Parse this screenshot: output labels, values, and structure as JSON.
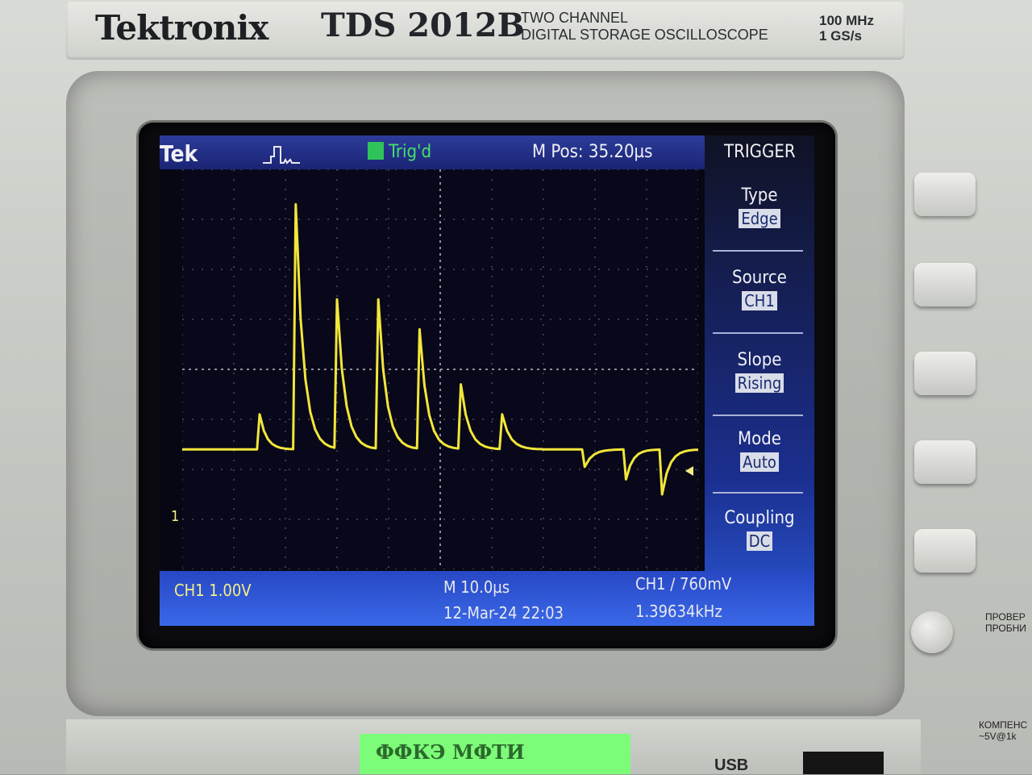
{
  "instrument": {
    "brand": "Tektronix",
    "model": "TDS 2012B",
    "description_line1": "TWO  CHANNEL",
    "description_line2": "DIGITAL STORAGE OSCILLOSCOPE",
    "bandwidth": "100 MHz",
    "sample_rate": "1 GS/s"
  },
  "screen": {
    "logo": "Tek",
    "trigger_status": "Trig'd",
    "horizontal_position": "M Pos: 35.20µs",
    "ch1_marker": "1",
    "ch1_scale": "CH1  1.00V",
    "timebase": "M 10.0µs",
    "datetime": "12-Mar-24 22:03",
    "trigger_level": "CH1 ∕ 760mV",
    "frequency": "1.39634kHz"
  },
  "trigger_menu": {
    "title": "TRIGGER",
    "items": [
      {
        "label": "Type",
        "value": "Edge"
      },
      {
        "label": "Source",
        "value": "CH1"
      },
      {
        "label": "Slope",
        "value": "Rising"
      },
      {
        "label": "Mode",
        "value": "Auto"
      },
      {
        "label": "Coupling",
        "value": "DC"
      }
    ]
  },
  "side_labels": {
    "probe_check": "ПРОВЕР",
    "probe_check2": "ПРОБНИ",
    "compensation": "КОМПЕНС",
    "compensation2": "~5V@1k"
  },
  "front_panel": {
    "sticker": "ФФКЭ МФТИ",
    "usb": "USB"
  },
  "colors": {
    "trace": "#f2e63a",
    "screen_bg": "#060713",
    "bar_blue": "#2748c4",
    "trig_green": "#45e06a"
  },
  "waveform": {
    "volts_per_div": 1.0,
    "time_per_div_us": 10.0,
    "baseline_div": -1.6,
    "peaks": [
      {
        "t_div": 1.5,
        "v_div": -0.9
      },
      {
        "t_div": 2.2,
        "v_div": 3.3
      },
      {
        "t_div": 3.0,
        "v_div": 1.4
      },
      {
        "t_div": 3.8,
        "v_div": 1.4
      },
      {
        "t_div": 4.6,
        "v_div": 0.8
      },
      {
        "t_div": 5.4,
        "v_div": -0.3
      },
      {
        "t_div": 6.2,
        "v_div": -0.9
      },
      {
        "t_div": 7.0,
        "v_div": -1.6
      },
      {
        "t_div": 7.8,
        "v_div": -1.95
      },
      {
        "t_div": 8.6,
        "v_div": -2.2
      },
      {
        "t_div": 9.3,
        "v_div": -2.5
      }
    ]
  }
}
